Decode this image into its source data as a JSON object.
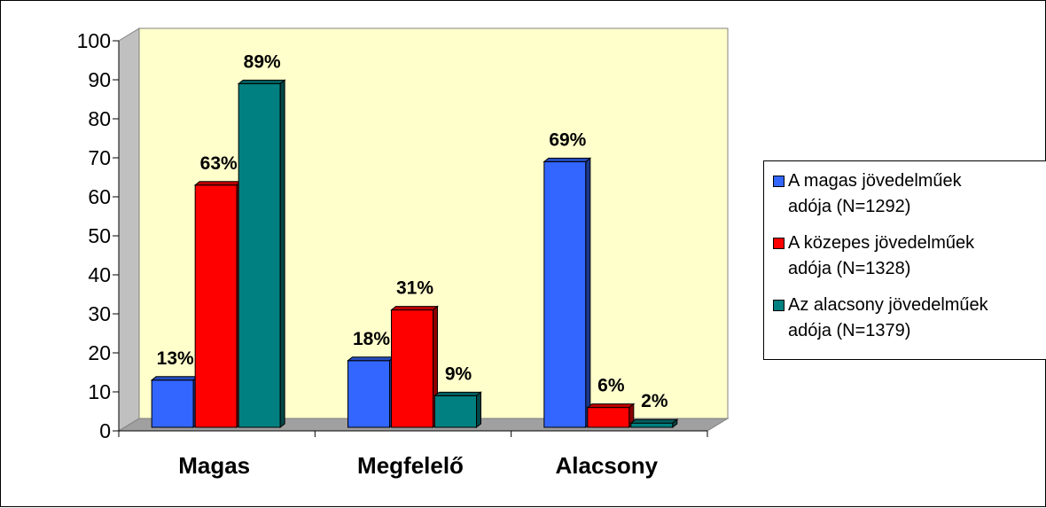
{
  "chart_data": {
    "type": "bar",
    "categories": [
      "Magas",
      "Megfelelő",
      "Alacsony"
    ],
    "series": [
      {
        "name": "A magas jövedelműek adója (N=1292)",
        "color": "#3366FF",
        "values": [
          13,
          18,
          69
        ],
        "labels": [
          "13%",
          "18%",
          "69%"
        ]
      },
      {
        "name": "A közepes jövedelműek adója (N=1328)",
        "color": "#FF0000",
        "values": [
          63,
          31,
          6
        ],
        "labels": [
          "63%",
          "31%",
          "6%"
        ]
      },
      {
        "name": "Az alacsony jövedelműek adója (N=1379)",
        "color": "#008080",
        "values": [
          89,
          9,
          2
        ],
        "labels": [
          "89%",
          "9%",
          "2%"
        ]
      }
    ],
    "ylim": [
      0,
      100
    ],
    "yticks": [
      "0",
      "10",
      "20",
      "30",
      "40",
      "50",
      "60",
      "70",
      "80",
      "90",
      "100"
    ],
    "legend_position": "right",
    "plot_background": "#FFFFCC",
    "grid": false
  },
  "legend": {
    "items": [
      {
        "text": "A magas jövedelműek\nadója (N=1292)",
        "color": "#3366FF"
      },
      {
        "text": "A közepes jövedelműek\nadója (N=1328)",
        "color": "#FF0000"
      },
      {
        "text": "Az alacsony jövedelműek\nadója (N=1379)",
        "color": "#008080"
      }
    ]
  }
}
